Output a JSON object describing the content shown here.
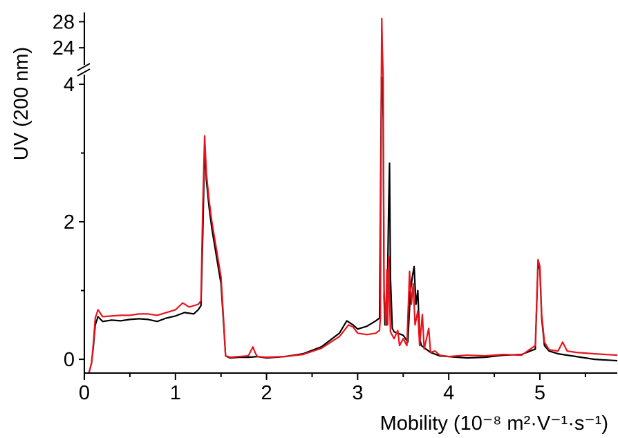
{
  "chart_data": {
    "type": "line",
    "title": "",
    "xlabel": "Mobility (10⁻⁸ m²·V⁻¹·s⁻¹)",
    "ylabel": "UV (200 nm)",
    "xlim": [
      0,
      5.85
    ],
    "ylim_lower": [
      -0.2,
      4.1
    ],
    "ylim_upper": [
      22,
      29
    ],
    "y_axis_break": [
      4.1,
      22
    ],
    "xticks": [
      "0",
      "1",
      "2",
      "3",
      "4",
      "5"
    ],
    "yticks_lower": [
      "0",
      "2",
      "4"
    ],
    "yticks_upper": [
      "24",
      "28"
    ],
    "grid": false,
    "legend": "none",
    "series": [
      {
        "color": "#000000",
        "points": [
          [
            0.05,
            -0.2
          ],
          [
            0.08,
            -0.05
          ],
          [
            0.1,
            0.2
          ],
          [
            0.12,
            0.5
          ],
          [
            0.15,
            0.62
          ],
          [
            0.2,
            0.55
          ],
          [
            0.3,
            0.57
          ],
          [
            0.4,
            0.56
          ],
          [
            0.5,
            0.58
          ],
          [
            0.6,
            0.59
          ],
          [
            0.7,
            0.58
          ],
          [
            0.8,
            0.55
          ],
          [
            0.9,
            0.6
          ],
          [
            1.0,
            0.63
          ],
          [
            1.1,
            0.68
          ],
          [
            1.2,
            0.66
          ],
          [
            1.25,
            0.72
          ],
          [
            1.28,
            0.78
          ],
          [
            1.3,
            1.8
          ],
          [
            1.32,
            3.1
          ],
          [
            1.34,
            2.6
          ],
          [
            1.37,
            2.2
          ],
          [
            1.4,
            1.9
          ],
          [
            1.45,
            1.5
          ],
          [
            1.5,
            1.1
          ],
          [
            1.53,
            0.5
          ],
          [
            1.55,
            0.05
          ],
          [
            1.6,
            0.02
          ],
          [
            1.7,
            0.03
          ],
          [
            1.8,
            0.03
          ],
          [
            1.9,
            0.04
          ],
          [
            2.0,
            0.02
          ],
          [
            2.2,
            0.04
          ],
          [
            2.4,
            0.08
          ],
          [
            2.6,
            0.18
          ],
          [
            2.8,
            0.38
          ],
          [
            2.88,
            0.56
          ],
          [
            2.95,
            0.5
          ],
          [
            3.0,
            0.44
          ],
          [
            3.1,
            0.48
          ],
          [
            3.2,
            0.56
          ],
          [
            3.24,
            0.6
          ],
          [
            3.25,
            2.0
          ],
          [
            3.26,
            4.1
          ],
          [
            3.27,
            4.1
          ],
          [
            3.28,
            3.5
          ],
          [
            3.29,
            0.9
          ],
          [
            3.3,
            0.5
          ],
          [
            3.32,
            0.5
          ],
          [
            3.34,
            2.2
          ],
          [
            3.35,
            2.85
          ],
          [
            3.36,
            1.2
          ],
          [
            3.38,
            0.45
          ],
          [
            3.4,
            0.4
          ],
          [
            3.5,
            0.35
          ],
          [
            3.55,
            0.25
          ],
          [
            3.58,
            1.0
          ],
          [
            3.6,
            1.2
          ],
          [
            3.62,
            1.35
          ],
          [
            3.64,
            0.8
          ],
          [
            3.66,
            1.0
          ],
          [
            3.68,
            0.3
          ],
          [
            3.7,
            0.2
          ],
          [
            3.8,
            0.1
          ],
          [
            3.9,
            0.05
          ],
          [
            4.0,
            0.04
          ],
          [
            4.2,
            0.02
          ],
          [
            4.4,
            0.03
          ],
          [
            4.6,
            0.06
          ],
          [
            4.8,
            0.07
          ],
          [
            4.95,
            0.15
          ],
          [
            4.98,
            1.4
          ],
          [
            5.0,
            1.3
          ],
          [
            5.02,
            0.6
          ],
          [
            5.05,
            0.2
          ],
          [
            5.1,
            0.12
          ],
          [
            5.2,
            0.08
          ],
          [
            5.4,
            0.04
          ],
          [
            5.6,
            0.0
          ],
          [
            5.85,
            -0.02
          ]
        ]
      },
      {
        "color": "#e8141b",
        "points": [
          [
            0.05,
            -0.2
          ],
          [
            0.08,
            -0.05
          ],
          [
            0.1,
            0.25
          ],
          [
            0.12,
            0.6
          ],
          [
            0.15,
            0.72
          ],
          [
            0.2,
            0.62
          ],
          [
            0.3,
            0.63
          ],
          [
            0.4,
            0.64
          ],
          [
            0.5,
            0.64
          ],
          [
            0.6,
            0.66
          ],
          [
            0.7,
            0.66
          ],
          [
            0.8,
            0.64
          ],
          [
            0.9,
            0.68
          ],
          [
            1.0,
            0.72
          ],
          [
            1.08,
            0.82
          ],
          [
            1.15,
            0.76
          ],
          [
            1.2,
            0.78
          ],
          [
            1.25,
            0.8
          ],
          [
            1.28,
            0.85
          ],
          [
            1.3,
            2.2
          ],
          [
            1.32,
            3.25
          ],
          [
            1.34,
            2.7
          ],
          [
            1.37,
            2.3
          ],
          [
            1.4,
            2.0
          ],
          [
            1.45,
            1.6
          ],
          [
            1.5,
            1.2
          ],
          [
            1.53,
            0.55
          ],
          [
            1.55,
            0.05
          ],
          [
            1.6,
            0.03
          ],
          [
            1.7,
            0.04
          ],
          [
            1.8,
            0.05
          ],
          [
            1.85,
            0.18
          ],
          [
            1.88,
            0.08
          ],
          [
            1.9,
            0.04
          ],
          [
            2.0,
            0.03
          ],
          [
            2.2,
            0.04
          ],
          [
            2.4,
            0.07
          ],
          [
            2.6,
            0.16
          ],
          [
            2.8,
            0.33
          ],
          [
            2.9,
            0.5
          ],
          [
            2.95,
            0.47
          ],
          [
            3.0,
            0.38
          ],
          [
            3.1,
            0.36
          ],
          [
            3.2,
            0.38
          ],
          [
            3.24,
            0.42
          ],
          [
            3.25,
            0.6
          ],
          [
            3.26,
            4.1
          ],
          [
            3.265,
            28.5
          ],
          [
            3.27,
            24
          ],
          [
            3.28,
            4.1
          ],
          [
            3.29,
            1.0
          ],
          [
            3.31,
            0.5
          ],
          [
            3.32,
            1.3
          ],
          [
            3.33,
            0.5
          ],
          [
            3.34,
            1.5
          ],
          [
            3.36,
            0.4
          ],
          [
            3.4,
            0.3
          ],
          [
            3.44,
            0.42
          ],
          [
            3.46,
            0.2
          ],
          [
            3.5,
            0.3
          ],
          [
            3.54,
            0.2
          ],
          [
            3.57,
            1.28
          ],
          [
            3.59,
            0.8
          ],
          [
            3.61,
            1.1
          ],
          [
            3.63,
            0.5
          ],
          [
            3.66,
            0.7
          ],
          [
            3.68,
            0.2
          ],
          [
            3.71,
            0.65
          ],
          [
            3.73,
            0.15
          ],
          [
            3.78,
            0.45
          ],
          [
            3.8,
            0.1
          ],
          [
            3.85,
            0.12
          ],
          [
            3.9,
            0.06
          ],
          [
            4.0,
            0.04
          ],
          [
            4.2,
            0.06
          ],
          [
            4.4,
            0.05
          ],
          [
            4.6,
            0.07
          ],
          [
            4.8,
            0.06
          ],
          [
            4.95,
            0.2
          ],
          [
            4.98,
            1.45
          ],
          [
            5.0,
            1.35
          ],
          [
            5.02,
            0.65
          ],
          [
            5.05,
            0.25
          ],
          [
            5.1,
            0.14
          ],
          [
            5.2,
            0.12
          ],
          [
            5.25,
            0.25
          ],
          [
            5.3,
            0.12
          ],
          [
            5.4,
            0.1
          ],
          [
            5.6,
            0.08
          ],
          [
            5.85,
            0.06
          ]
        ]
      }
    ]
  }
}
